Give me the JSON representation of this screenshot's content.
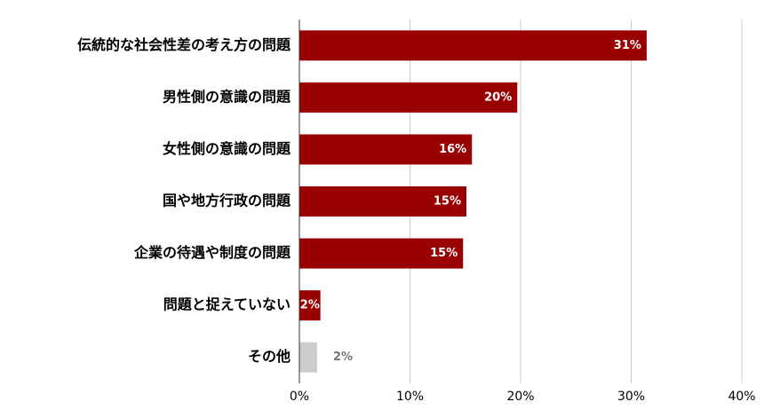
{
  "chart_data": {
    "type": "bar",
    "orientation": "horizontal",
    "categories": [
      "伝統的な社会性差の考え方の問題",
      "男性側の意識の問題",
      "女性側の意識の問題",
      "国や地方行政の問題",
      "企業の待遇や制度の問題",
      "問題と捉えていない",
      "その他"
    ],
    "values": [
      31.4,
      19.7,
      15.6,
      15.1,
      14.8,
      1.9,
      1.6
    ],
    "value_labels": [
      "31%",
      "20%",
      "16%",
      "15%",
      "15%",
      "2%",
      "2%"
    ],
    "colors": [
      "#990000",
      "#990000",
      "#990000",
      "#990000",
      "#990000",
      "#990000",
      "#cccccc"
    ],
    "value_label_colors": [
      "#ffffff",
      "#ffffff",
      "#ffffff",
      "#ffffff",
      "#ffffff",
      "#ffffff",
      "#757575"
    ],
    "xlim": [
      0,
      40
    ],
    "xticks": [
      {
        "value": 0,
        "label": "0%"
      },
      {
        "value": 10,
        "label": "10%"
      },
      {
        "value": 20,
        "label": "20%"
      },
      {
        "value": 30,
        "label": "30%"
      },
      {
        "value": 40,
        "label": "40%"
      }
    ],
    "grid": true
  }
}
